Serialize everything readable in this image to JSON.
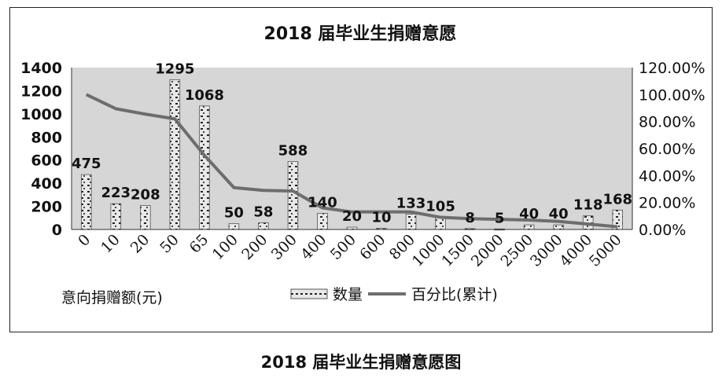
{
  "caption": "2018 届毕业生捐赠意愿图",
  "chart_data": {
    "type": "bar",
    "title": "2018 届毕业生捐赠意愿",
    "xlabel": "意向捐赠额(元)",
    "categories": [
      "0",
      "10",
      "20",
      "50",
      "65",
      "100",
      "200",
      "300",
      "400",
      "500",
      "600",
      "800",
      "1000",
      "1500",
      "2000",
      "2500",
      "3000",
      "4000",
      "5000"
    ],
    "series": [
      {
        "name": "数量",
        "type": "bar",
        "axis": "left",
        "values": [
          475,
          223,
          208,
          1295,
          1068,
          50,
          58,
          588,
          140,
          20,
          10,
          133,
          105,
          8,
          5,
          40,
          40,
          118,
          168
        ],
        "data_labels": [
          "475",
          "223",
          "208",
          "1295",
          "1068",
          "50",
          "58",
          "588",
          "140",
          "20",
          "10",
          "133",
          "105",
          "8",
          "5",
          "40",
          "40",
          "118",
          "168"
        ]
      },
      {
        "name": "百分比(累计)",
        "type": "line",
        "axis": "right",
        "values": [
          1.0,
          0.895,
          0.855,
          0.82,
          0.55,
          0.31,
          0.29,
          0.285,
          0.16,
          0.13,
          0.13,
          0.13,
          0.09,
          0.08,
          0.075,
          0.07,
          0.06,
          0.04,
          0.02
        ]
      }
    ],
    "ylim": [
      0,
      1400
    ],
    "yticks": [
      "0",
      "200",
      "400",
      "600",
      "800",
      "1000",
      "1200",
      "1400"
    ],
    "y2lim": [
      0,
      1.2
    ],
    "y2ticks": [
      "0.00%",
      "20.00%",
      "40.00%",
      "60.00%",
      "80.00%",
      "100.00%",
      "120.00%"
    ],
    "legend_position": "bottom",
    "grid": false,
    "colors": {
      "plot_background": "#d6d6d6",
      "bar_fill": "#e8e8e8",
      "line": "#6d6d6d"
    }
  }
}
